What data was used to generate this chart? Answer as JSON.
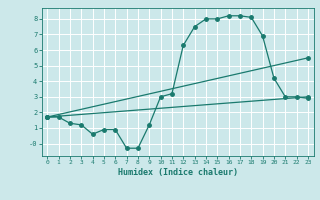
{
  "bg_color": "#cce8ea",
  "grid_color": "#ffffff",
  "line_color": "#1a7a6e",
  "xlabel": "Humidex (Indice chaleur)",
  "xlim": [
    -0.5,
    23.5
  ],
  "ylim": [
    -0.8,
    8.7
  ],
  "xticks": [
    0,
    1,
    2,
    3,
    4,
    5,
    6,
    7,
    8,
    9,
    10,
    11,
    12,
    13,
    14,
    15,
    16,
    17,
    18,
    19,
    20,
    21,
    22,
    23
  ],
  "yticks": [
    0,
    1,
    2,
    3,
    4,
    5,
    6,
    7,
    8
  ],
  "ytick_labels": [
    "-0",
    "1",
    "2",
    "3",
    "4",
    "5",
    "6",
    "7",
    "8"
  ],
  "line1_x": [
    0,
    1,
    2,
    3,
    4,
    5,
    6,
    7,
    8,
    9,
    10,
    11,
    12,
    13,
    14,
    15,
    16,
    17,
    18,
    19,
    20,
    21,
    22,
    23
  ],
  "line1_y": [
    1.7,
    1.7,
    1.3,
    1.2,
    0.6,
    0.9,
    0.9,
    -0.3,
    -0.3,
    1.2,
    3.0,
    3.2,
    6.3,
    7.5,
    8.0,
    8.0,
    8.2,
    8.2,
    8.1,
    6.9,
    4.2,
    3.0,
    3.0,
    2.9
  ],
  "line2_x": [
    0,
    23
  ],
  "line2_y": [
    1.7,
    5.5
  ],
  "line3_x": [
    0,
    23
  ],
  "line3_y": [
    1.7,
    3.0
  ]
}
